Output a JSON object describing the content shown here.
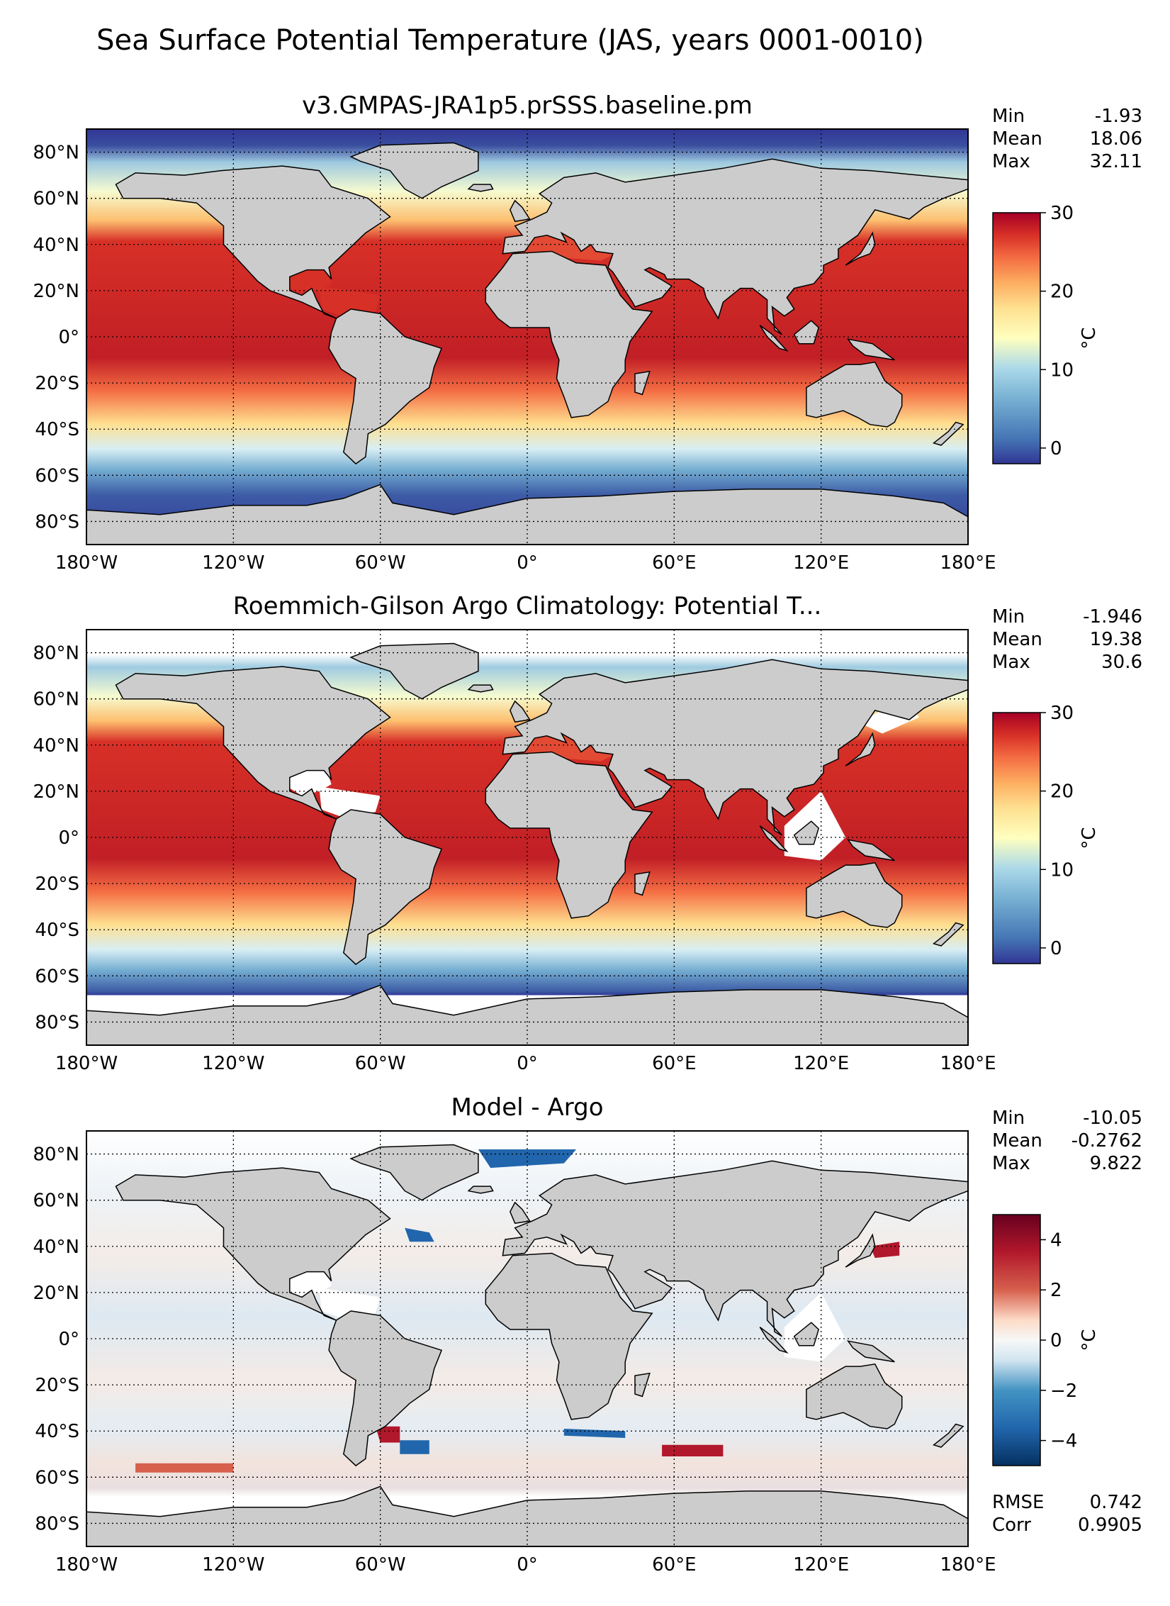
{
  "figure": {
    "suptitle": "Sea Surface Potential Temperature (JAS, years 0001-0010)"
  },
  "chart_data": [
    {
      "type": "heatmap",
      "title": "v3.GMPAS-JRA1p5.prSSS.baseline.pm",
      "x_tick_labels": [
        "180°W",
        "120°W",
        "60°W",
        "0°",
        "60°E",
        "120°E",
        "180°E"
      ],
      "y_tick_labels": [
        "80°N",
        "60°N",
        "40°N",
        "20°N",
        "0°",
        "20°S",
        "40°S",
        "60°S",
        "80°S"
      ],
      "stats": [
        {
          "label": "Min",
          "value": "-1.93"
        },
        {
          "label": "Mean",
          "value": "18.06"
        },
        {
          "label": "Max",
          "value": "32.11"
        }
      ],
      "colorbar": {
        "label": "°C",
        "ticks": [
          "30",
          "20",
          "10",
          "0"
        ],
        "range": [
          -2,
          30
        ],
        "colormap": "RdYlBu_r"
      }
    },
    {
      "type": "heatmap",
      "title": "Roemmich-Gilson Argo Climatology: Potential T...",
      "x_tick_labels": [
        "180°W",
        "120°W",
        "60°W",
        "0°",
        "60°E",
        "120°E",
        "180°E"
      ],
      "y_tick_labels": [
        "80°N",
        "60°N",
        "40°N",
        "20°N",
        "0°",
        "20°S",
        "40°S",
        "60°S",
        "80°S"
      ],
      "stats": [
        {
          "label": "Min",
          "value": "-1.946"
        },
        {
          "label": "Mean",
          "value": "19.38"
        },
        {
          "label": "Max",
          "value": "30.6"
        }
      ],
      "colorbar": {
        "label": "°C",
        "ticks": [
          "30",
          "20",
          "10",
          "0"
        ],
        "range": [
          -2,
          30
        ],
        "colormap": "RdYlBu_r"
      }
    },
    {
      "type": "heatmap",
      "title": "Model - Argo",
      "x_tick_labels": [
        "180°W",
        "120°W",
        "60°W",
        "0°",
        "60°E",
        "120°E",
        "180°E"
      ],
      "y_tick_labels": [
        "80°N",
        "60°N",
        "40°N",
        "20°N",
        "0°",
        "20°S",
        "40°S",
        "60°S",
        "80°S"
      ],
      "stats": [
        {
          "label": "Min",
          "value": "-10.05"
        },
        {
          "label": "Mean",
          "value": "-0.2762"
        },
        {
          "label": "Max",
          "value": "9.822"
        }
      ],
      "extra_stats": [
        {
          "label": "RMSE",
          "value": "0.742"
        },
        {
          "label": "Corr",
          "value": "0.9905"
        }
      ],
      "colorbar": {
        "label": "°C",
        "ticks": [
          "4",
          "2",
          "0",
          "−2",
          "−4"
        ],
        "range": [
          -5,
          5
        ],
        "colormap": "RdBu_r"
      }
    }
  ]
}
